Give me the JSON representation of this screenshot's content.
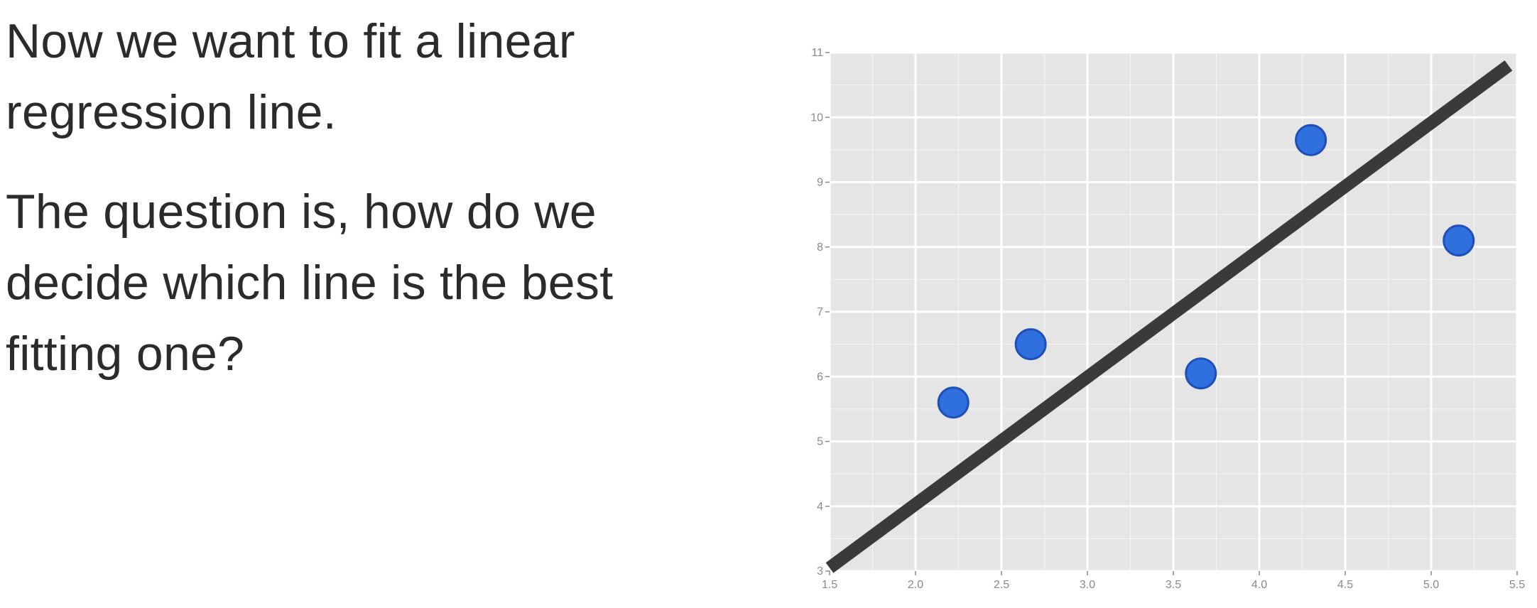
{
  "slide": {
    "paragraphs": [
      "Now we want to fit a linear\nregression line.",
      "The question is, how do we\ndecide which line is the best\nfitting one?"
    ]
  },
  "chart_data": {
    "type": "scatter",
    "title": "",
    "xlabel": "",
    "ylabel": "",
    "xlim": [
      1.5,
      5.5
    ],
    "ylim": [
      3,
      11
    ],
    "x_ticks": [
      "1.5",
      "2.0",
      "2.5",
      "3.0",
      "3.5",
      "4.0",
      "4.5",
      "5.0",
      "5.5"
    ],
    "y_ticks": [
      "3",
      "4",
      "5",
      "6",
      "7",
      "8",
      "9",
      "10",
      "11"
    ],
    "grid": true,
    "points": [
      {
        "x": 2.22,
        "y": 5.6
      },
      {
        "x": 2.67,
        "y": 6.5
      },
      {
        "x": 3.66,
        "y": 6.05
      },
      {
        "x": 4.3,
        "y": 9.65
      },
      {
        "x": 5.16,
        "y": 8.1
      }
    ],
    "regression_line": {
      "x": [
        1.5,
        5.45
      ],
      "y": [
        3.05,
        10.8
      ]
    },
    "colors": {
      "background": "#e5e5e5",
      "grid": "#ffffff",
      "point_fill": "#2f6fde",
      "point_stroke": "#1f4fb8",
      "line": "#3a3a3a"
    }
  }
}
